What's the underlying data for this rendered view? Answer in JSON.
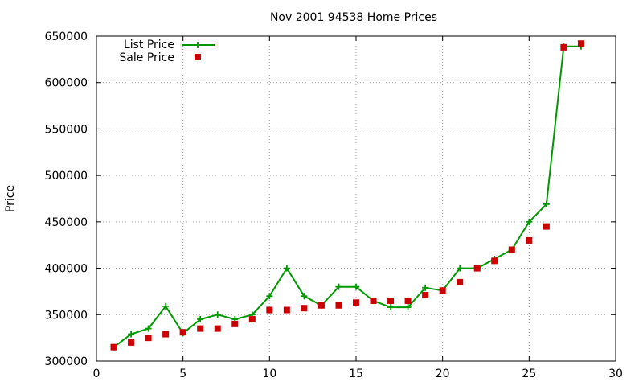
{
  "chart_data": {
    "type": "line",
    "title": "Nov 2001 94538 Home Prices",
    "xlabel": "",
    "ylabel": "Price",
    "xlim": [
      0,
      30
    ],
    "ylim": [
      300000,
      650000
    ],
    "x_ticks": [
      0,
      5,
      10,
      15,
      20,
      25,
      30
    ],
    "y_ticks": [
      300000,
      350000,
      400000,
      450000,
      500000,
      550000,
      600000,
      650000
    ],
    "grid": true,
    "legend_position": "top-left",
    "series": [
      {
        "name": "List Price",
        "style": "linespoints",
        "marker": "plus",
        "color": "#009900",
        "x": [
          1,
          2,
          3,
          4,
          5,
          6,
          7,
          8,
          9,
          10,
          11,
          12,
          13,
          14,
          15,
          16,
          17,
          18,
          19,
          20,
          21,
          22,
          23,
          24,
          25,
          26,
          27,
          28
        ],
        "y": [
          315000,
          329000,
          335000,
          359000,
          330000,
          345000,
          350000,
          345000,
          350000,
          370000,
          400000,
          370000,
          360000,
          380000,
          380000,
          365000,
          358000,
          358000,
          379000,
          376000,
          400000,
          400000,
          410000,
          420000,
          450000,
          469000,
          639000,
          639000
        ]
      },
      {
        "name": "Sale Price",
        "style": "points",
        "marker": "square",
        "color": "#cc0000",
        "x": [
          1,
          2,
          3,
          4,
          5,
          6,
          7,
          8,
          9,
          10,
          11,
          12,
          13,
          14,
          15,
          16,
          17,
          18,
          19,
          20,
          21,
          22,
          23,
          24,
          25,
          26,
          27,
          28
        ],
        "y": [
          315000,
          320000,
          325000,
          329000,
          331000,
          335000,
          335000,
          340000,
          345000,
          355000,
          355000,
          357000,
          360000,
          360000,
          363000,
          365000,
          365000,
          365000,
          371000,
          376000,
          385000,
          400000,
          408000,
          420000,
          430000,
          445000,
          638000,
          642000
        ]
      }
    ]
  }
}
